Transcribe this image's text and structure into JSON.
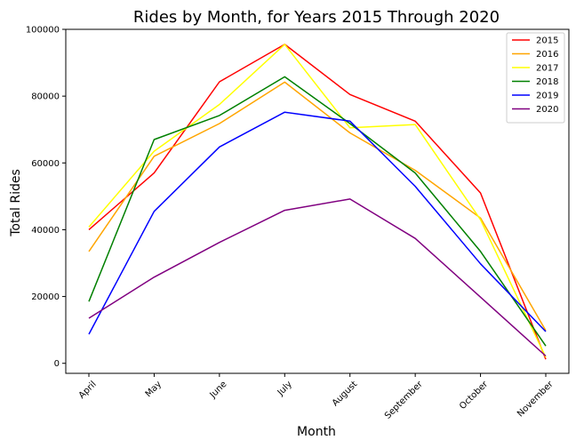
{
  "chart_data": {
    "type": "line",
    "title": "Rides by Month, for Years 2015 Through 2020",
    "xlabel": "Month",
    "ylabel": "Total Rides",
    "categories": [
      "April",
      "May",
      "June",
      "July",
      "August",
      "September",
      "October",
      "November"
    ],
    "ylim": [
      -3000,
      100000
    ],
    "yticks": [
      0,
      20000,
      40000,
      60000,
      80000,
      100000
    ],
    "legend_position": "upper right",
    "grid": false,
    "series": [
      {
        "name": "2015",
        "color": "#ff0000",
        "values": [
          40000,
          57000,
          84300,
          95500,
          80500,
          72500,
          51000,
          1200
        ]
      },
      {
        "name": "2016",
        "color": "#ffa500",
        "values": [
          33500,
          62000,
          71800,
          84200,
          69000,
          57800,
          43500,
          9800
        ]
      },
      {
        "name": "2017",
        "color": "#ffff00",
        "values": [
          40800,
          63500,
          77500,
          95500,
          70500,
          71500,
          43000,
          1800
        ]
      },
      {
        "name": "2018",
        "color": "#008000",
        "values": [
          18500,
          67000,
          74200,
          85800,
          71800,
          57000,
          33500,
          5200
        ]
      },
      {
        "name": "2019",
        "color": "#0000ff",
        "values": [
          8700,
          45500,
          64800,
          75200,
          72500,
          53000,
          29800,
          9500
        ]
      },
      {
        "name": "2020",
        "color": "#800080",
        "values": [
          13500,
          25800,
          36200,
          45800,
          49200,
          37400,
          19800,
          2200
        ]
      }
    ]
  }
}
